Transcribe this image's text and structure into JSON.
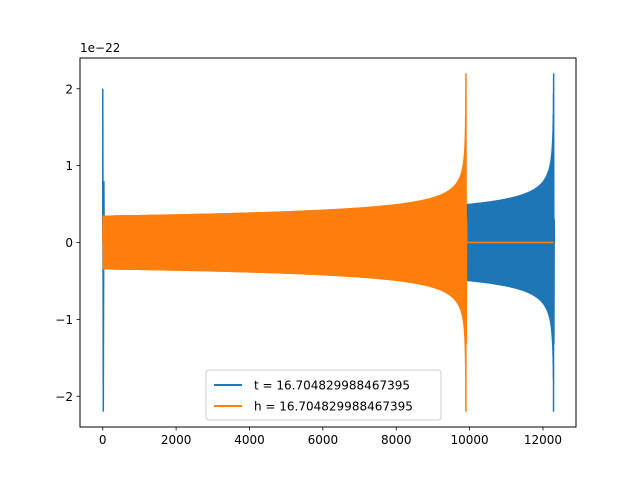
{
  "chart_data": {
    "type": "line",
    "title": "",
    "xlabel": "",
    "ylabel": "",
    "xlim": [
      -620,
      12900
    ],
    "ylim": [
      -2.4,
      2.4
    ],
    "y_offset_text": "1e−22",
    "xticks": [
      0,
      2000,
      4000,
      6000,
      8000,
      10000,
      12000
    ],
    "xtick_labels": [
      "0",
      "2000",
      "4000",
      "6000",
      "8000",
      "10000",
      "12000"
    ],
    "yticks": [
      -2,
      -1,
      0,
      1,
      2
    ],
    "ytick_labels": [
      "−2",
      "−1",
      "0",
      "1",
      "2"
    ],
    "grid": false,
    "legend_position": "lower center",
    "series": [
      {
        "name": "t = 16.704829988467395",
        "color": "#1f77b4",
        "x_start": 0,
        "x_end": 12290,
        "initial_spike": 2.0,
        "start_amplitude": 0.35,
        "amplitude_at_9900": 0.5,
        "peak_amplitude": 2.2
      },
      {
        "name": "h = 16.704829988467395",
        "color": "#ff7f0e",
        "x_start": 0,
        "x_end": 9900,
        "start_amplitude": 0.35,
        "peak_amplitude": 2.2,
        "zero_after_x": 9900,
        "zero_until_x": 12290
      }
    ]
  }
}
